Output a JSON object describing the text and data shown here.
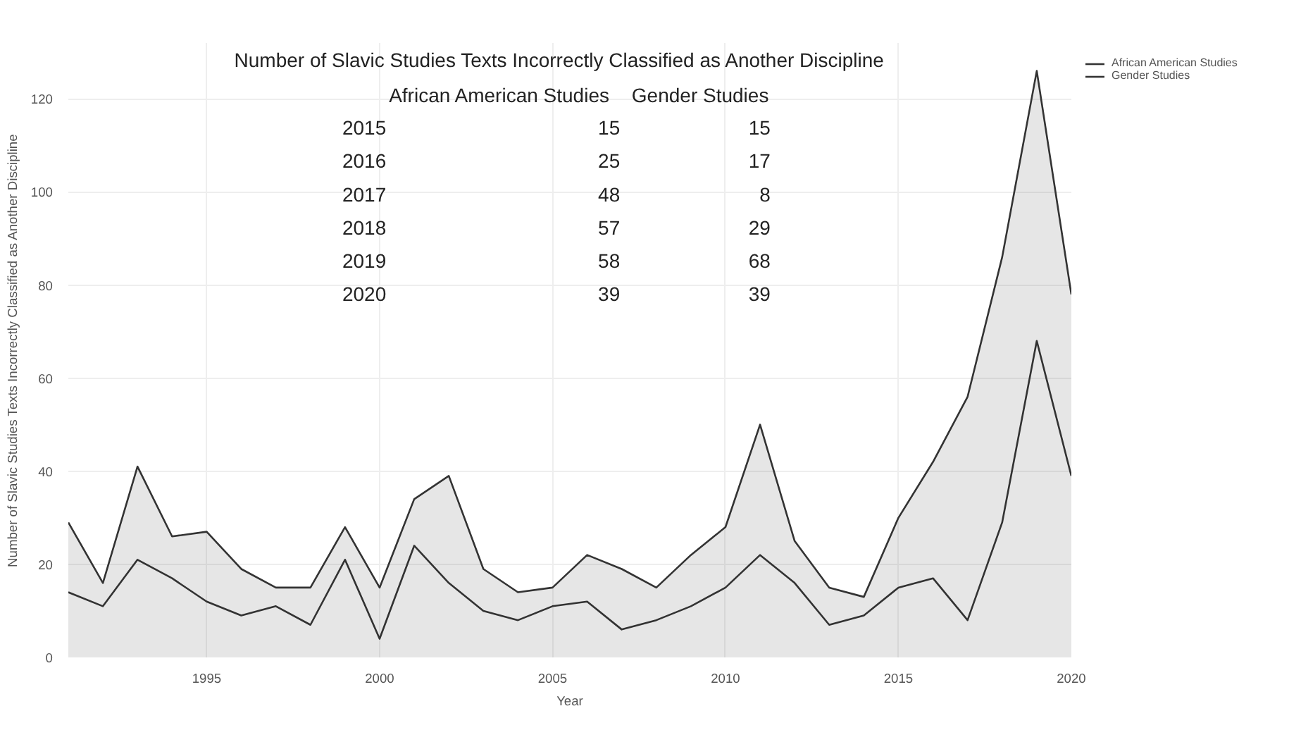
{
  "chart_data": {
    "type": "area",
    "stacked": true,
    "xlabel": "Year",
    "ylabel": "Number of Slavic Studies Texts Incorrectly Classified as Another Discipline",
    "annotations": [
      "Number of Slavic Studies Texts Incorrectly Classified as Another Discipline",
      "2015",
      "15",
      "15",
      "2016",
      "25",
      "17",
      "2017",
      "48",
      "8",
      "2018",
      "57",
      "29",
      "2019",
      "58",
      "68",
      "2020",
      "39",
      "39"
    ],
    "x": [
      1991,
      1992,
      1993,
      1994,
      1995,
      1996,
      1997,
      1998,
      1999,
      2000,
      2001,
      2002,
      2003,
      2004,
      2005,
      2006,
      2007,
      2008,
      2009,
      2010,
      2011,
      2012,
      2013,
      2014,
      2015,
      2016,
      2017,
      2018,
      2019,
      2020
    ],
    "series": [
      {
        "name": "Gender Studies",
        "color": "#333333",
        "values": [
          14,
          11,
          21,
          17,
          12,
          9,
          11,
          7,
          21,
          4,
          24,
          16,
          10,
          8,
          11,
          12,
          6,
          8,
          11,
          15,
          22,
          16,
          7,
          9,
          15,
          17,
          8,
          29,
          68,
          39
        ]
      },
      {
        "name": "African American Studies",
        "color": "#333333",
        "values": [
          15,
          5,
          20,
          9,
          15,
          10,
          4,
          8,
          7,
          11,
          10,
          23,
          9,
          6,
          4,
          10,
          13,
          7,
          11,
          13,
          28,
          9,
          8,
          4,
          15,
          25,
          48,
          57,
          58,
          39
        ]
      }
    ],
    "xlim": [
      1991,
      2020
    ],
    "xticks": [
      1995,
      2000,
      2005,
      2010,
      2015,
      2020
    ],
    "ylim": [
      0,
      132
    ],
    "yticks": [
      0,
      20,
      40,
      60,
      80,
      100,
      120
    ],
    "grid": true,
    "legend": "top right"
  }
}
